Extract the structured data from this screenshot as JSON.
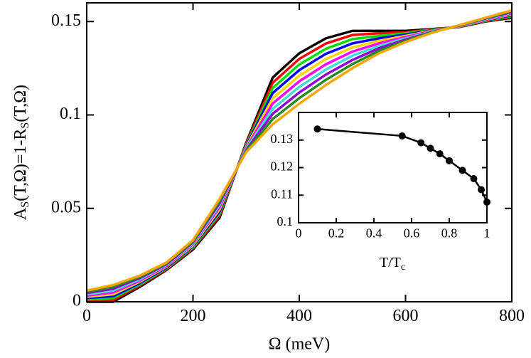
{
  "chart_data": [
    {
      "type": "line",
      "xlabel": "Ω (meV)",
      "ylabel_parts": [
        "A",
        "S",
        "(T,Ω)=1-R",
        "S",
        "(T,Ω)"
      ],
      "x": [
        0,
        50,
        100,
        150,
        200,
        250,
        300,
        350,
        400,
        450,
        500,
        550,
        600,
        650,
        700,
        750,
        800
      ],
      "xlim": [
        0,
        800
      ],
      "xticks": [
        0,
        200,
        400,
        600,
        800
      ],
      "ylim": [
        0,
        0.16
      ],
      "yticks": [
        0,
        0.05,
        0.1,
        0.15
      ],
      "series": [
        {
          "color": "#000000",
          "values": [
            0,
            0,
            0.008,
            0.017,
            0.028,
            0.045,
            0.085,
            0.12,
            0.133,
            0.141,
            0.145,
            0.145,
            0.145,
            0.146,
            0.147,
            0.15,
            0.152
          ]
        },
        {
          "color": "#ff0000",
          "values": [
            0.0007,
            0.001,
            0.0087,
            0.0174,
            0.0286,
            0.0461,
            0.0844,
            0.1172,
            0.13,
            0.1382,
            0.1428,
            0.1437,
            0.1443,
            0.1458,
            0.1471,
            0.1502,
            0.1524
          ]
        },
        {
          "color": "#00e000",
          "values": [
            0.0013,
            0.002,
            0.0093,
            0.0179,
            0.0291,
            0.0472,
            0.0839,
            0.1144,
            0.127,
            0.1354,
            0.1406,
            0.1423,
            0.1437,
            0.1456,
            0.1472,
            0.1504,
            0.1529
          ]
        },
        {
          "color": "#0000ff",
          "values": [
            0.002,
            0.003,
            0.01,
            0.0183,
            0.0297,
            0.0483,
            0.0833,
            0.1117,
            0.124,
            0.1327,
            0.1383,
            0.141,
            0.143,
            0.1453,
            0.1473,
            0.1507,
            0.1533
          ]
        },
        {
          "color": "#ffd700",
          "values": [
            0.0027,
            0.004,
            0.0107,
            0.0188,
            0.0302,
            0.0494,
            0.0828,
            0.1089,
            0.121,
            0.1299,
            0.1361,
            0.1397,
            0.1423,
            0.1451,
            0.1474,
            0.1509,
            0.1538
          ]
        },
        {
          "color": "#ff00ff",
          "values": [
            0.0033,
            0.005,
            0.0113,
            0.0192,
            0.0308,
            0.0506,
            0.0822,
            0.1061,
            0.118,
            0.1271,
            0.1339,
            0.1383,
            0.1417,
            0.1449,
            0.1476,
            0.1511,
            0.1542
          ]
        },
        {
          "color": "#40e0d0",
          "values": [
            0.004,
            0.006,
            0.012,
            0.0197,
            0.0313,
            0.0517,
            0.0817,
            0.1033,
            0.115,
            0.1243,
            0.1317,
            0.137,
            0.141,
            0.1447,
            0.1477,
            0.1513,
            0.1547
          ]
        },
        {
          "color": "#9400d3",
          "values": [
            0.0047,
            0.007,
            0.0127,
            0.0201,
            0.0319,
            0.0528,
            0.0811,
            0.1006,
            0.112,
            0.1216,
            0.1294,
            0.1357,
            0.1403,
            0.1444,
            0.1478,
            0.1516,
            0.1551
          ]
        },
        {
          "color": "#228b22",
          "values": [
            0.0053,
            0.008,
            0.0133,
            0.0206,
            0.0324,
            0.0539,
            0.0806,
            0.0978,
            0.109,
            0.1188,
            0.1272,
            0.1343,
            0.1397,
            0.1442,
            0.1479,
            0.1518,
            0.1556
          ]
        },
        {
          "color": "#ffa500",
          "values": [
            0.006,
            0.009,
            0.014,
            0.021,
            0.033,
            0.055,
            0.08,
            0.095,
            0.106,
            0.116,
            0.125,
            0.133,
            0.139,
            0.144,
            0.148,
            0.152,
            0.156
          ]
        }
      ]
    },
    {
      "type": "line",
      "markers": true,
      "xlabel_parts": [
        "T/T",
        "c"
      ],
      "x": [
        0.1,
        0.55,
        0.65,
        0.7,
        0.75,
        0.8,
        0.87,
        0.93,
        0.97,
        1.0
      ],
      "xlim": [
        0,
        1
      ],
      "xticks": [
        0,
        0.2,
        0.4,
        0.6,
        0.8,
        1
      ],
      "ylim": [
        0.1,
        0.14
      ],
      "yticks": [
        0.1,
        0.11,
        0.12,
        0.13
      ],
      "series": [
        {
          "color": "#000000",
          "values": [
            0.134,
            0.1315,
            0.129,
            0.127,
            0.125,
            0.1225,
            0.119,
            0.116,
            0.112,
            0.1075
          ]
        }
      ]
    }
  ]
}
